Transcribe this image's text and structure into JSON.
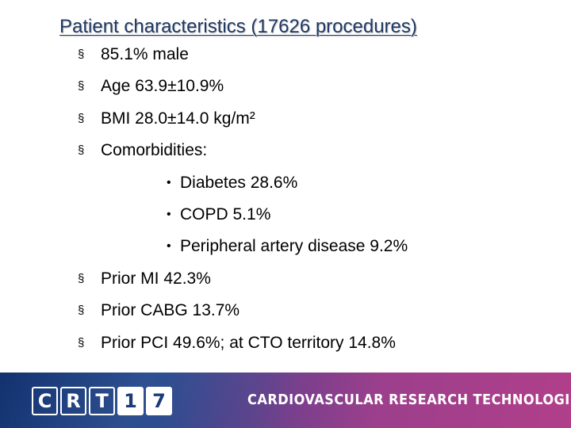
{
  "slide": {
    "title": "Patient characteristics (17626 procedures)",
    "bullet_marker": "§",
    "sub_marker": "•",
    "items": [
      {
        "text": "85.1% male"
      },
      {
        "text": "Age 63.9±10.9%"
      },
      {
        "text": "BMI 28.0±14.0 kg/m²"
      },
      {
        "text": "Comorbidities:"
      },
      {
        "text": "Diabetes 28.6%"
      },
      {
        "text": "COPD 5.1%"
      },
      {
        "text": "Peripheral artery disease 9.2%"
      },
      {
        "text": "Prior MI 42.3%"
      },
      {
        "text": "Prior CABG 13.7%"
      },
      {
        "text": "Prior PCI 49.6%; at CTO territory 14.8%"
      }
    ]
  },
  "footer": {
    "logo_letters": [
      "C",
      "R",
      "T",
      "1",
      "7"
    ],
    "tagline": "CARDIOVASCULAR RESEARCH TECHNOLOGIES",
    "colors": {
      "left": "#0f2f6e",
      "right": "#b13f8a"
    }
  }
}
